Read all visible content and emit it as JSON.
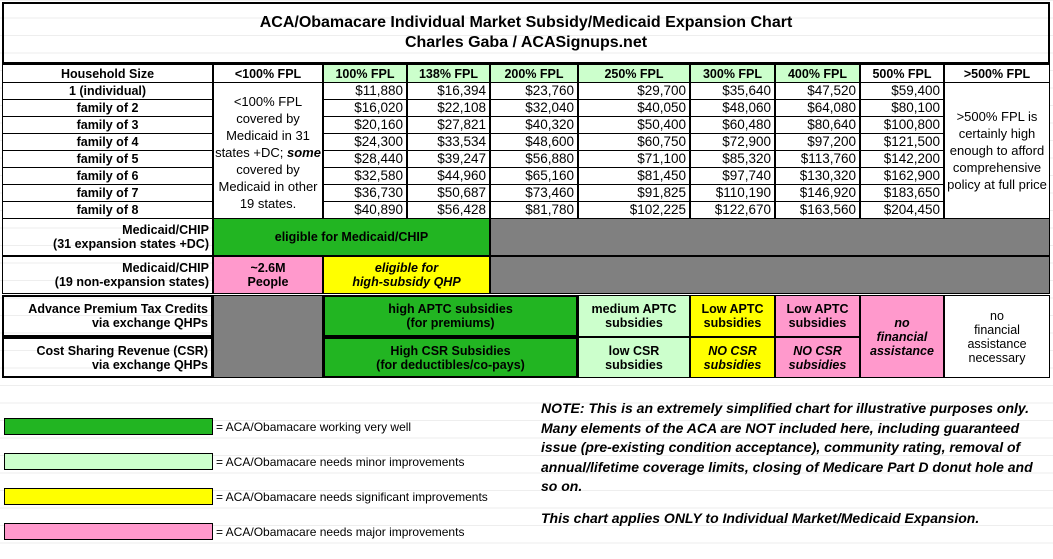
{
  "title": "ACA/Obamacare Individual Market Subsidy/Medicaid Expansion Chart",
  "subtitle": "Charles Gaba / ACASignups.net",
  "colors": {
    "green": "#22b522",
    "light_green": "#ccffcc",
    "yellow": "#ffff00",
    "pink": "#ff99cc",
    "gray": "#808080"
  },
  "headers": [
    "Household Size",
    "<100% FPL",
    "100% FPL",
    "138% FPL",
    "200% FPL",
    "250% FPL",
    "300% FPL",
    "400% FPL",
    "500% FPL",
    ">500% FPL"
  ],
  "household_sizes": [
    "1 (individual)",
    "family of 2",
    "family of 3",
    "family of 4",
    "family of 5",
    "family of 6",
    "family of 7",
    "family of 8"
  ],
  "incomes": [
    [
      "$11,880",
      "$16,394",
      "$23,760",
      "$29,700",
      "$35,640",
      "$47,520",
      "$59,400"
    ],
    [
      "$16,020",
      "$22,108",
      "$32,040",
      "$40,050",
      "$48,060",
      "$64,080",
      "$80,100"
    ],
    [
      "$20,160",
      "$27,821",
      "$40,320",
      "$50,400",
      "$60,480",
      "$80,640",
      "$100,800"
    ],
    [
      "$24,300",
      "$33,534",
      "$48,600",
      "$60,750",
      "$72,900",
      "$97,200",
      "$121,500"
    ],
    [
      "$28,440",
      "$39,247",
      "$56,880",
      "$71,100",
      "$85,320",
      "$113,760",
      "$142,200"
    ],
    [
      "$32,580",
      "$44,960",
      "$65,160",
      "$81,450",
      "$97,740",
      "$130,320",
      "$162,900"
    ],
    [
      "$36,730",
      "$50,687",
      "$73,460",
      "$91,825",
      "$110,190",
      "$146,920",
      "$183,650"
    ],
    [
      "$40,890",
      "$56,428",
      "$81,780",
      "$102,225",
      "$122,670",
      "$163,560",
      "$204,450"
    ]
  ],
  "below100_note": {
    "pre": "<100% FPL covered by Medicaid in 31 states +DC;",
    "em": "some",
    "post": "covered by Medicaid in other 19 states."
  },
  "above500_note": ">500% FPL is certainly high enough to afford comprehensive policy at full price",
  "rows": {
    "medicaid_exp": {
      "l1": "Medicaid/CHIP",
      "l2": "(31 expansion states +DC)",
      "cell": "eligible for Medicaid/CHIP"
    },
    "medicaid_nonexp": {
      "l1": "Medicaid/CHIP",
      "l2": "(19 non-expansion states)",
      "pink1": "~2.6M",
      "pink2": "People",
      "yellow1": "eligible for",
      "yellow2": "high-subsidy QHP"
    },
    "aptc": {
      "l1": "Advance Premium Tax Credits",
      "l2": "via exchange QHPs",
      "high1": "high APTC subsidies",
      "high2": "(for premiums)",
      "med1": "medium APTC",
      "med2": "subsidies",
      "low1a": "Low APTC",
      "low1b": "subsidies",
      "low2a": "Low APTC",
      "low2b": "subsidies"
    },
    "csr": {
      "l1": "Cost Sharing Revenue (CSR)",
      "l2": "via exchange QHPs",
      "high1": "High CSR Subsidies",
      "high2": "(for deductibles/co-pays)",
      "low1": "low CSR",
      "low2": "subsidies",
      "no1a": "NO CSR",
      "no1b": "subsidies",
      "no2a": "NO CSR",
      "no2b": "subsidies"
    },
    "no_fin": {
      "a": "no",
      "b": "financial",
      "c": "assistance"
    },
    "no_need": {
      "a": "no",
      "b": "financial",
      "c": "assistance",
      "d": "necessary"
    }
  },
  "legend": [
    "= ACA/Obamacare working very well",
    "= ACA/Obamacare needs minor improvements",
    "= ACA/Obamacare needs significant improvements",
    "= ACA/Obamacare needs major improvements"
  ],
  "note": "NOTE: This is an extremely simplified chart for illustrative purposes only. Many elements of the ACA are NOT included here, including guaranteed issue (pre-existing condition acceptance), community rating, removal of annual/lifetime coverage limits, closing of Medicare Part D donut hole and so on.",
  "note2": "This chart applies ONLY to Individual Market/Medicaid Expansion."
}
